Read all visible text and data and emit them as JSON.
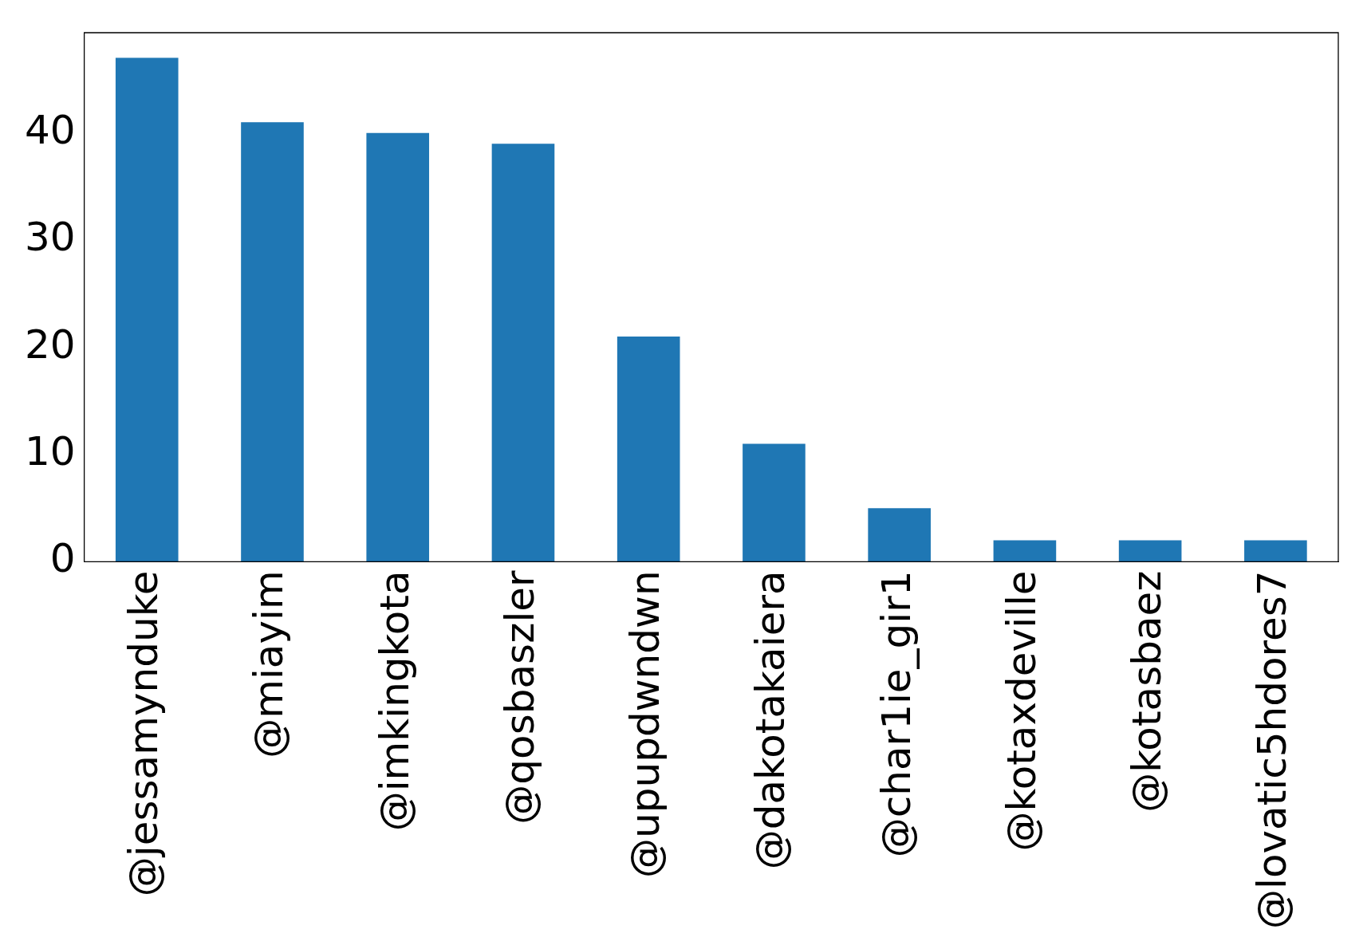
{
  "chart_data": {
    "type": "bar",
    "categories": [
      "@jessamynduke",
      "@miayim",
      "@imkingkota",
      "@qosbaszler",
      "@upupdwndwn",
      "@dakotakaiera",
      "@char1ie_gir1",
      "@kotaxdeville",
      "@kotasbaez",
      "@lovatic5hdores7"
    ],
    "values": [
      47,
      41,
      40,
      39,
      21,
      11,
      5,
      2,
      2,
      2
    ],
    "color": "#1f77b4",
    "ylim": [
      0,
      49.35
    ],
    "yticks": [
      0,
      10,
      20,
      30,
      40
    ],
    "grid": false,
    "legend": false
  }
}
